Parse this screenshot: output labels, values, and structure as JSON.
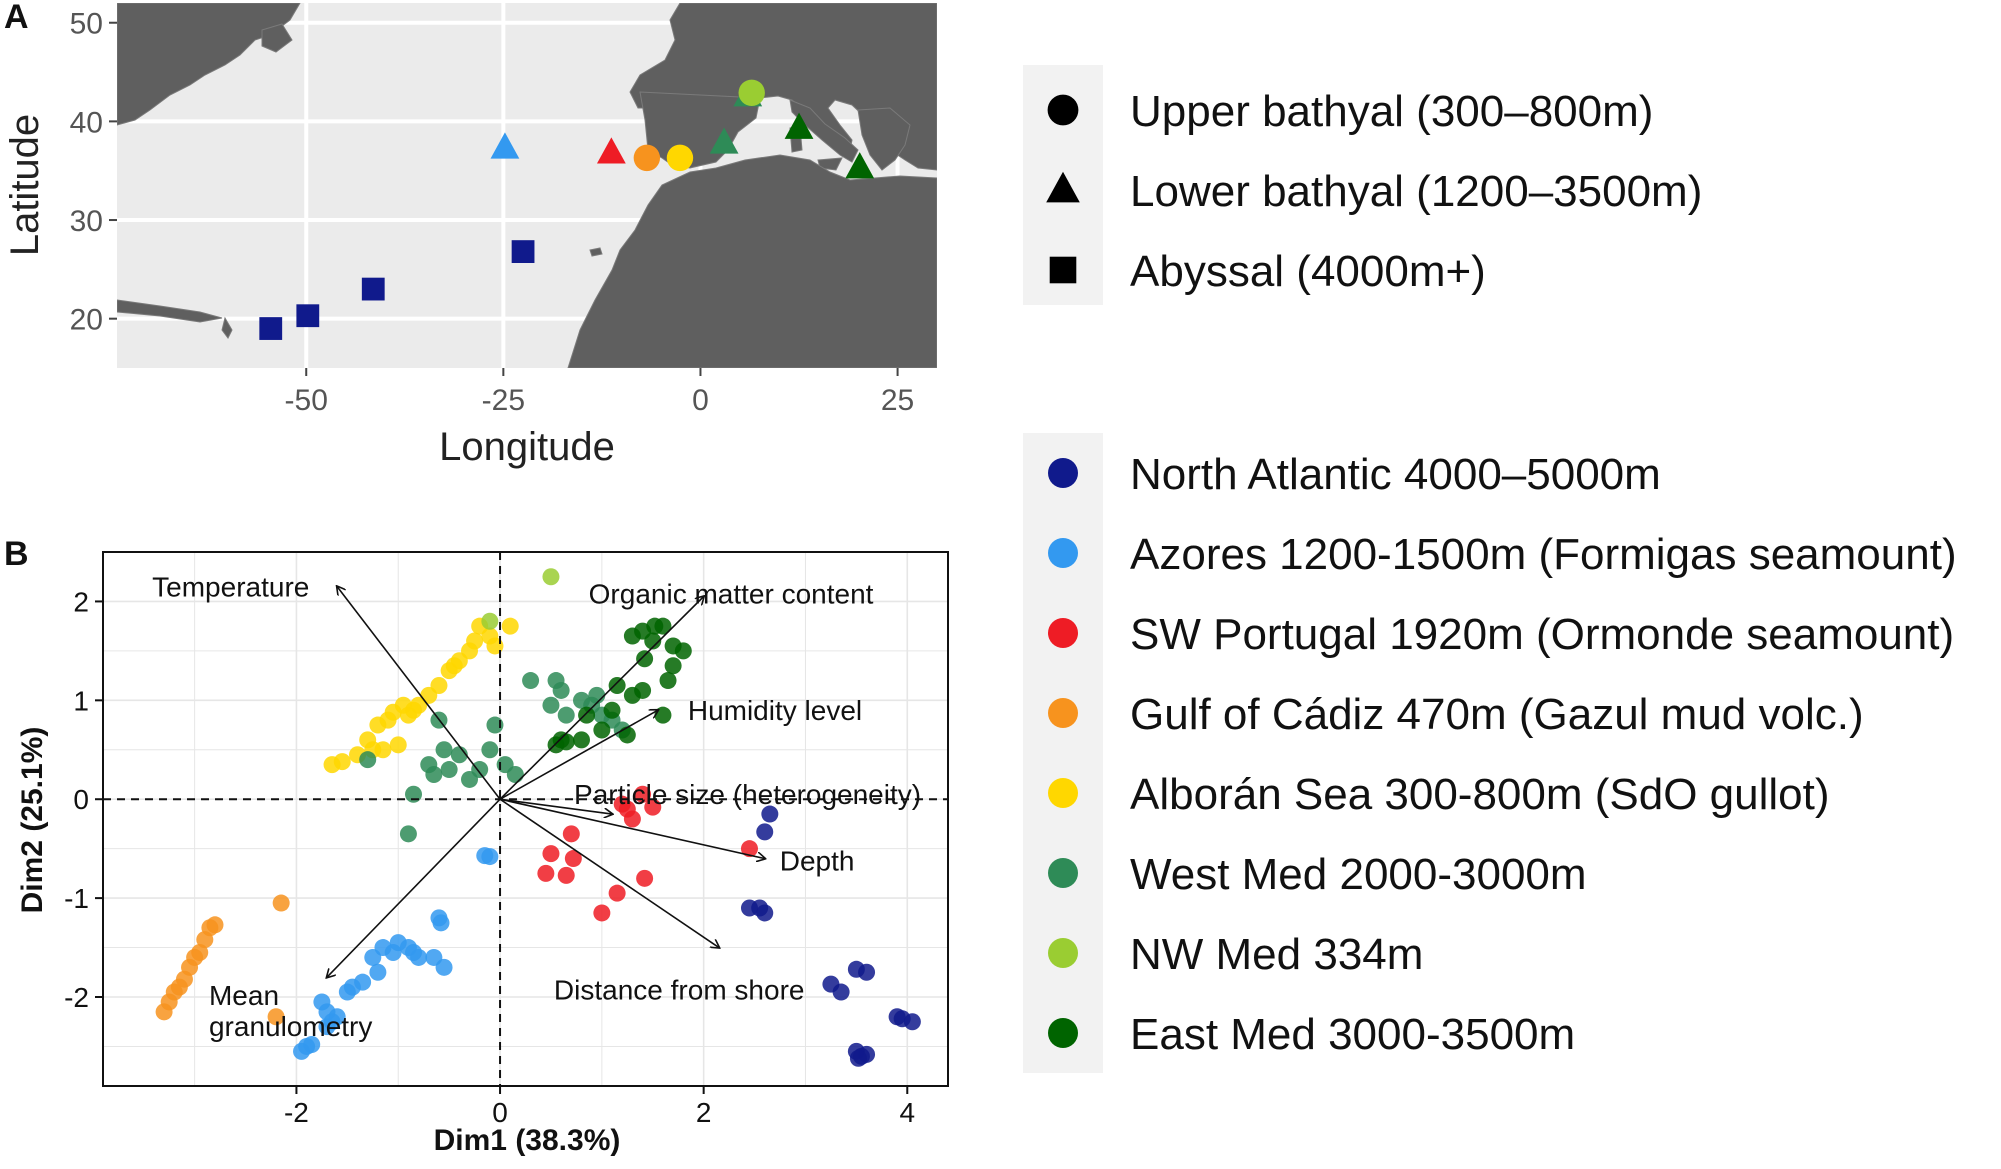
{
  "panels": {
    "a_label": "A",
    "b_label": "B"
  },
  "map": {
    "xlabel": "Longitude",
    "ylabel": "Latitude",
    "xticks": [
      "-50",
      "-25",
      "0",
      "25"
    ],
    "yticks": [
      "20",
      "30",
      "40",
      "50"
    ],
    "xlim": [
      -74,
      30
    ],
    "ylim": [
      15,
      52
    ],
    "colors": {
      "ocean": "#ebebeb",
      "land": "#5f5f5f",
      "grid": "#ffffff"
    }
  },
  "legend_depth": {
    "items": [
      {
        "shape": "circle",
        "label": "Upper bathyal (300–800m)"
      },
      {
        "shape": "triangle",
        "label": "Lower bathyal (1200–3500m)"
      },
      {
        "shape": "square",
        "label": "Abyssal (4000m+)"
      }
    ]
  },
  "legend_region": {
    "items": [
      {
        "key": "NA",
        "label": "North Atlantic 4000–5000m",
        "color": "#101a8c"
      },
      {
        "key": "AZ",
        "label": "Azores 1200-1500m (Formigas seamount)",
        "color": "#3399f0"
      },
      {
        "key": "SWP",
        "label": "SW Portugal 1920m (Ormonde seamount)",
        "color": "#ee1c25"
      },
      {
        "key": "GC",
        "label": "Gulf of Cádiz 470m (Gazul mud volc.)",
        "color": "#f7931e"
      },
      {
        "key": "AS",
        "label": "Alborán Sea 300-800m (SdO gullot)",
        "color": "#ffd700"
      },
      {
        "key": "WM",
        "label": "West Med 2000-3000m",
        "color": "#2e8b57"
      },
      {
        "key": "NWM",
        "label": "NW Med 334m",
        "color": "#9acd32"
      },
      {
        "key": "EM",
        "label": "East Med 3000-3500m",
        "color": "#006400"
      }
    ]
  },
  "chart_data": [
    {
      "type": "scatter",
      "title": "",
      "xlabel": "Longitude",
      "ylabel": "Latitude",
      "xlim": [
        -74,
        30
      ],
      "ylim": [
        15,
        52
      ],
      "grid": true,
      "points": [
        {
          "lon": -54.5,
          "lat": 19.0,
          "region": "NA",
          "shape": "square"
        },
        {
          "lon": -49.8,
          "lat": 20.3,
          "region": "NA",
          "shape": "square"
        },
        {
          "lon": -41.5,
          "lat": 23.0,
          "region": "NA",
          "shape": "square"
        },
        {
          "lon": -22.5,
          "lat": 26.8,
          "region": "NA",
          "shape": "square"
        },
        {
          "lon": -24.8,
          "lat": 37.3,
          "region": "AZ",
          "shape": "triangle"
        },
        {
          "lon": -11.3,
          "lat": 36.8,
          "region": "SWP",
          "shape": "triangle"
        },
        {
          "lon": -6.8,
          "lat": 36.3,
          "region": "GC",
          "shape": "circle"
        },
        {
          "lon": -2.6,
          "lat": 36.3,
          "region": "AS",
          "shape": "circle"
        },
        {
          "lon": 3.0,
          "lat": 37.8,
          "region": "WM",
          "shape": "triangle"
        },
        {
          "lon": 6.0,
          "lat": 42.6,
          "region": "WM",
          "shape": "triangle"
        },
        {
          "lon": 6.5,
          "lat": 42.9,
          "region": "NWM",
          "shape": "circle"
        },
        {
          "lon": 12.5,
          "lat": 39.3,
          "region": "EM",
          "shape": "triangle"
        },
        {
          "lon": 20.2,
          "lat": 35.3,
          "region": "EM",
          "shape": "triangle"
        }
      ]
    },
    {
      "type": "scatter",
      "title": "",
      "xlabel": "Dim1 (38.3%)",
      "ylabel": "Dim2 (25.1%)",
      "xlim": [
        -3.9,
        4.4
      ],
      "ylim": [
        -2.9,
        2.5
      ],
      "xticks": [
        "-2",
        "0",
        "2",
        "4"
      ],
      "yticks": [
        "-2",
        "-1",
        "0",
        "1",
        "2"
      ],
      "grid": true,
      "legend_placement": "right",
      "vectors": [
        {
          "name": "Temperature",
          "x": -1.6,
          "y": 2.15
        },
        {
          "name": "Organic matter content",
          "x": 2.0,
          "y": 2.05
        },
        {
          "name": "Humidity level",
          "x": 1.55,
          "y": 0.9
        },
        {
          "name": "Particle size (heterogeneity)",
          "x": 1.1,
          "y": -0.15
        },
        {
          "name": "Depth",
          "x": 2.6,
          "y": -0.6
        },
        {
          "name": "Distance from shore",
          "x": 2.15,
          "y": -1.5
        },
        {
          "name": "Mean granulometry",
          "x": -1.7,
          "y": -1.8
        }
      ],
      "points": {
        "NA": [
          [
            2.65,
            -0.15
          ],
          [
            2.6,
            -0.33
          ],
          [
            2.55,
            -1.1
          ],
          [
            2.6,
            -1.15
          ],
          [
            2.45,
            -1.1
          ],
          [
            3.25,
            -1.87
          ],
          [
            3.35,
            -1.95
          ],
          [
            3.5,
            -1.72
          ],
          [
            3.6,
            -1.75
          ],
          [
            3.5,
            -2.55
          ],
          [
            3.55,
            -2.6
          ],
          [
            3.6,
            -2.58
          ],
          [
            3.52,
            -2.62
          ],
          [
            3.9,
            -2.2
          ],
          [
            4.05,
            -2.25
          ],
          [
            3.95,
            -2.22
          ]
        ],
        "AZ": [
          [
            -1.9,
            -2.5
          ],
          [
            -1.95,
            -2.55
          ],
          [
            -1.85,
            -2.48
          ],
          [
            -1.7,
            -2.3
          ],
          [
            -1.65,
            -2.25
          ],
          [
            -1.6,
            -2.2
          ],
          [
            -1.7,
            -2.15
          ],
          [
            -1.75,
            -2.05
          ],
          [
            -1.5,
            -1.95
          ],
          [
            -1.45,
            -1.9
          ],
          [
            -1.35,
            -1.85
          ],
          [
            -1.2,
            -1.75
          ],
          [
            -1.25,
            -1.6
          ],
          [
            -1.05,
            -1.55
          ],
          [
            -1.0,
            -1.45
          ],
          [
            -0.9,
            -1.5
          ],
          [
            -0.85,
            -1.55
          ],
          [
            -0.8,
            -1.6
          ],
          [
            -0.65,
            -1.6
          ],
          [
            -0.6,
            -1.2
          ],
          [
            -0.58,
            -1.25
          ],
          [
            -0.55,
            -1.7
          ],
          [
            -0.15,
            -0.57
          ],
          [
            -0.1,
            -0.58
          ],
          [
            -1.15,
            -1.5
          ]
        ],
        "SWP": [
          [
            0.5,
            -0.55
          ],
          [
            0.7,
            -0.35
          ],
          [
            0.72,
            -0.6
          ],
          [
            0.45,
            -0.75
          ],
          [
            0.65,
            -0.77
          ],
          [
            1.2,
            -0.05
          ],
          [
            1.25,
            -0.1
          ],
          [
            1.3,
            -0.2
          ],
          [
            1.4,
            0.05
          ],
          [
            1.5,
            -0.08
          ],
          [
            1.15,
            -0.95
          ],
          [
            1.42,
            -0.8
          ],
          [
            1.0,
            -1.15
          ],
          [
            2.45,
            -0.5
          ]
        ],
        "GC": [
          [
            -2.8,
            -1.27
          ],
          [
            -2.85,
            -1.3
          ],
          [
            -2.9,
            -1.42
          ],
          [
            -2.95,
            -1.55
          ],
          [
            -3.0,
            -1.6
          ],
          [
            -3.05,
            -1.7
          ],
          [
            -3.1,
            -1.82
          ],
          [
            -3.15,
            -1.9
          ],
          [
            -3.25,
            -2.05
          ],
          [
            -3.3,
            -2.15
          ],
          [
            -3.2,
            -1.95
          ],
          [
            -2.15,
            -1.05
          ],
          [
            -2.2,
            -2.2
          ]
        ],
        "AS": [
          [
            -0.2,
            1.75
          ],
          [
            -0.25,
            1.6
          ],
          [
            -0.3,
            1.5
          ],
          [
            -0.4,
            1.4
          ],
          [
            -0.45,
            1.35
          ],
          [
            -0.5,
            1.3
          ],
          [
            -0.6,
            1.15
          ],
          [
            -0.7,
            1.05
          ],
          [
            -0.8,
            0.95
          ],
          [
            -0.85,
            0.9
          ],
          [
            -0.9,
            0.85
          ],
          [
            -0.95,
            0.95
          ],
          [
            -1.05,
            0.88
          ],
          [
            -1.1,
            0.8
          ],
          [
            -1.2,
            0.75
          ],
          [
            -1.3,
            0.6
          ],
          [
            -1.25,
            0.5
          ],
          [
            -1.4,
            0.45
          ],
          [
            -1.55,
            0.38
          ],
          [
            -1.65,
            0.35
          ],
          [
            -0.1,
            1.65
          ],
          [
            0.1,
            1.75
          ],
          [
            -0.05,
            1.55
          ],
          [
            -1.0,
            0.55
          ],
          [
            -1.15,
            0.5
          ]
        ],
        "WM": [
          [
            -0.6,
            0.8
          ],
          [
            -0.55,
            0.5
          ],
          [
            -0.4,
            0.45
          ],
          [
            -0.5,
            0.3
          ],
          [
            -0.65,
            0.25
          ],
          [
            -0.7,
            0.35
          ],
          [
            -0.3,
            0.2
          ],
          [
            -0.2,
            0.3
          ],
          [
            -0.1,
            0.5
          ],
          [
            -0.05,
            0.75
          ],
          [
            0.05,
            0.35
          ],
          [
            0.15,
            0.25
          ],
          [
            -0.85,
            0.05
          ],
          [
            -0.9,
            -0.35
          ],
          [
            0.3,
            1.2
          ],
          [
            0.55,
            1.2
          ],
          [
            0.6,
            1.1
          ],
          [
            0.5,
            0.95
          ],
          [
            0.65,
            0.85
          ],
          [
            0.8,
            1.0
          ],
          [
            0.9,
            0.95
          ],
          [
            1.0,
            0.85
          ],
          [
            0.95,
            1.05
          ],
          [
            1.1,
            0.8
          ],
          [
            1.2,
            0.7
          ],
          [
            -1.3,
            0.4
          ]
        ],
        "NWM": [
          [
            -0.1,
            1.8
          ],
          [
            0.5,
            2.25
          ]
        ],
        "EM": [
          [
            1.3,
            1.65
          ],
          [
            1.4,
            1.7
          ],
          [
            1.5,
            1.6
          ],
          [
            1.6,
            1.75
          ],
          [
            1.7,
            1.55
          ],
          [
            1.8,
            1.5
          ],
          [
            1.7,
            1.35
          ],
          [
            1.65,
            1.2
          ],
          [
            1.4,
            1.1
          ],
          [
            1.3,
            1.05
          ],
          [
            1.1,
            0.9
          ],
          [
            1.15,
            1.15
          ],
          [
            0.85,
            0.85
          ],
          [
            0.6,
            0.6
          ],
          [
            0.55,
            0.55
          ],
          [
            0.65,
            0.58
          ],
          [
            0.8,
            0.6
          ],
          [
            1.0,
            0.7
          ],
          [
            1.25,
            0.65
          ],
          [
            1.6,
            0.85
          ],
          [
            1.42,
            1.42
          ],
          [
            1.52,
            1.75
          ]
        ]
      }
    }
  ]
}
